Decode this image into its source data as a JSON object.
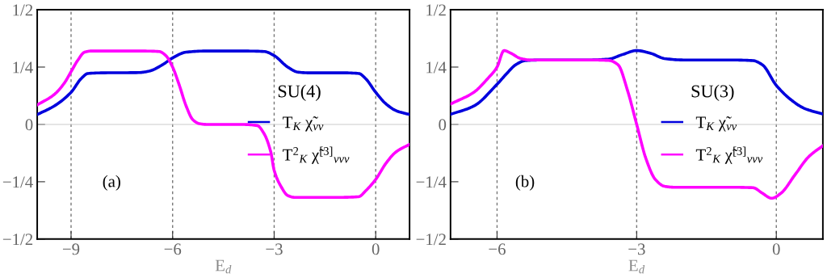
{
  "chart_data": [
    {
      "type": "line",
      "xlabel": "E$_{d}$",
      "legend_title": "SU(4)",
      "annotations": [
        "(a)"
      ],
      "legend": "right",
      "grid": "x",
      "line_style": "solid",
      "marker": "none",
      "xlim": [
        -10,
        1
      ],
      "xticks": [
        {
          "value": -9,
          "label": "−9"
        },
        {
          "value": -6,
          "label": "−6"
        },
        {
          "value": -3,
          "label": "−3"
        },
        0
      ],
      "ylim": [
        -0.5,
        0.5
      ],
      "yticks": [
        {
          "value": -0.5,
          "label": "−1/2"
        },
        {
          "value": -0.25,
          "label": "−1/4"
        },
        0,
        {
          "value": 0.25,
          "label": "1/4"
        },
        {
          "value": 0.5,
          "label": "1/2"
        }
      ],
      "ref_lines": [
        {
          "axis": "y",
          "value": 0,
          "label": null,
          "color": "#cccccc"
        }
      ],
      "series": [
        {
          "name": "T$_{K}$ χ̃$_{νν}$",
          "color": "#0000dd",
          "x": [
            -10,
            -9.5,
            -9,
            -8.7,
            -8.5,
            -8,
            -7,
            -6.7,
            -6.3,
            -6,
            -5.6,
            -5,
            -4,
            -3.3,
            -3,
            -2.6,
            -2.3,
            -2,
            -1,
            -0.5,
            -0.3,
            0,
            0.3,
            0.6,
            1
          ],
          "values": [
            0.043,
            0.08,
            0.14,
            0.2,
            0.222,
            0.225,
            0.226,
            0.232,
            0.26,
            0.29,
            0.315,
            0.32,
            0.32,
            0.318,
            0.3,
            0.25,
            0.228,
            0.225,
            0.225,
            0.222,
            0.2,
            0.14,
            0.09,
            0.06,
            0.043
          ]
        },
        {
          "name": "T$^{2}$$_{K}$ χ̃$^{[3]}$$_{ννν}$",
          "color": "#ff00ff",
          "x": [
            -10,
            -9.5,
            -9.2,
            -9,
            -8.8,
            -8.6,
            -8.4,
            -7,
            -6.4,
            -6.2,
            -6,
            -5.8,
            -5.6,
            -5.4,
            -5.2,
            -5,
            -4,
            -3.5,
            -3.3,
            -3.1,
            -3,
            -2.8,
            -2.6,
            -2.4,
            -1,
            -0.5,
            -0.3,
            0,
            0.3,
            0.6,
            1
          ],
          "values": [
            0.085,
            0.13,
            0.18,
            0.23,
            0.28,
            0.315,
            0.32,
            0.32,
            0.318,
            0.3,
            0.25,
            0.17,
            0.08,
            0.02,
            0.003,
            0,
            0,
            -0.005,
            -0.04,
            -0.12,
            -0.2,
            -0.27,
            -0.31,
            -0.318,
            -0.318,
            -0.315,
            -0.29,
            -0.24,
            -0.17,
            -0.12,
            -0.087
          ]
        }
      ]
    },
    {
      "type": "line",
      "xlabel": "E$_{d}$",
      "legend_title": "SU(3)",
      "annotations": [
        "(b)"
      ],
      "legend": "right",
      "grid": "x",
      "line_style": "solid",
      "marker": "none",
      "xlim": [
        -7,
        1
      ],
      "xticks": [
        {
          "value": -6,
          "label": "−6"
        },
        {
          "value": -3,
          "label": "−3"
        },
        0
      ],
      "ylim": [
        -0.5,
        0.5
      ],
      "yticks": [
        {
          "value": -0.5,
          "label": "−1/2"
        },
        {
          "value": -0.25,
          "label": "−1/4"
        },
        0,
        {
          "value": 0.25,
          "label": "1/4"
        },
        {
          "value": 0.5,
          "label": "1/2"
        }
      ],
      "ref_lines": [
        {
          "axis": "y",
          "value": 0,
          "label": null,
          "color": "#cccccc"
        }
      ],
      "series": [
        {
          "name": "T$_{K}$ χ̃$_{νν}$",
          "color": "#0000dd",
          "x": [
            -7,
            -6.5,
            -6,
            -5.8,
            -5.6,
            -5.4,
            -5,
            -4,
            -3.6,
            -3.3,
            -3,
            -2.7,
            -2.4,
            -2,
            -1,
            -0.5,
            -0.3,
            0,
            0.3,
            0.6,
            1
          ],
          "values": [
            0.044,
            0.08,
            0.175,
            0.22,
            0.26,
            0.278,
            0.281,
            0.281,
            0.285,
            0.305,
            0.322,
            0.31,
            0.287,
            0.281,
            0.281,
            0.278,
            0.26,
            0.17,
            0.11,
            0.07,
            0.045
          ]
        },
        {
          "name": "T$^{2}$$_{K}$ χ̃$^{[3]}$$_{ννν}$",
          "color": "#ff00ff",
          "x": [
            -7,
            -6.5,
            -6.2,
            -6,
            -5.85,
            -5.7,
            -5.5,
            -5.3,
            -4,
            -3.6,
            -3.4,
            -3.2,
            -3,
            -2.8,
            -2.6,
            -2.4,
            -2.2,
            -1,
            -0.5,
            -0.3,
            -0.1,
            0.1,
            0.4,
            0.7,
            1
          ],
          "values": [
            0.089,
            0.14,
            0.2,
            0.25,
            0.322,
            0.31,
            0.288,
            0.281,
            0.281,
            0.279,
            0.26,
            0.15,
            0.0,
            -0.15,
            -0.24,
            -0.27,
            -0.274,
            -0.274,
            -0.276,
            -0.3,
            -0.322,
            -0.3,
            -0.22,
            -0.14,
            -0.093
          ]
        }
      ]
    }
  ]
}
